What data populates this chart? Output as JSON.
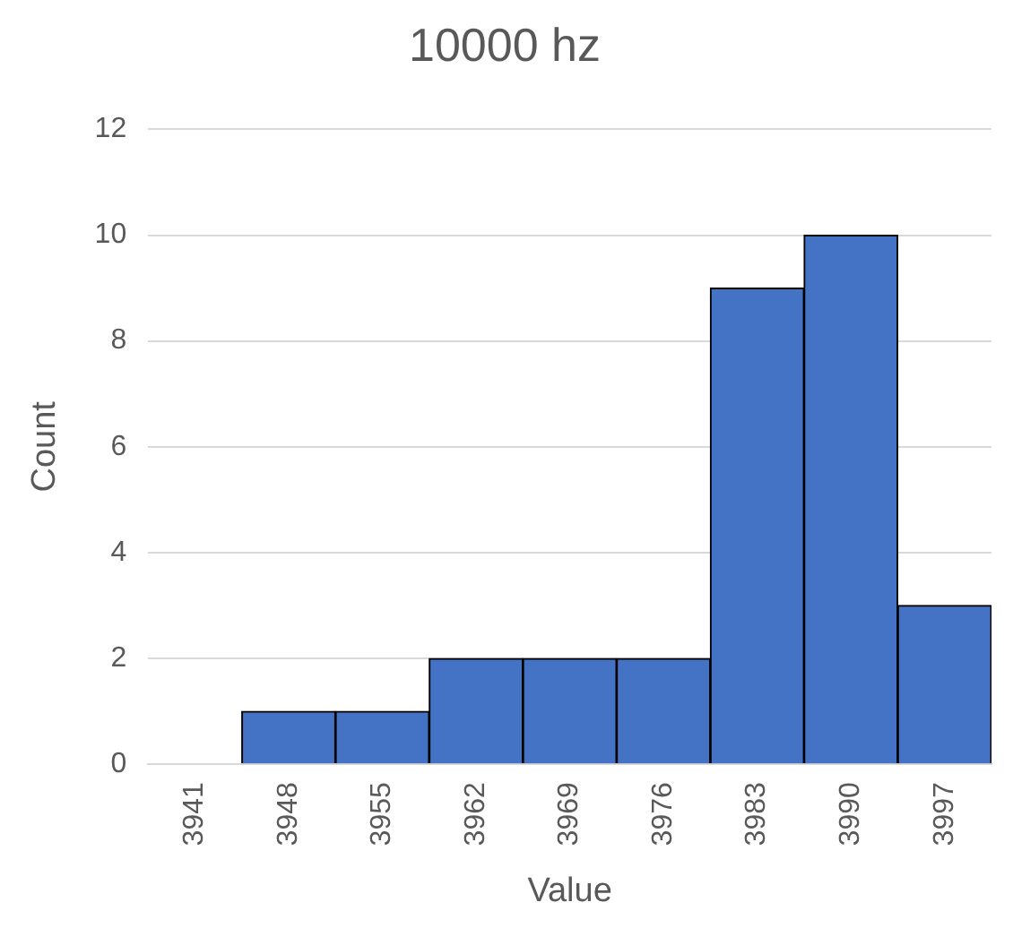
{
  "chart_data": {
    "type": "bar",
    "title": "10000 hz",
    "xlabel": "Value",
    "ylabel": "Count",
    "categories": [
      "3941",
      "3948",
      "3955",
      "3962",
      "3969",
      "3976",
      "3983",
      "3990",
      "3997"
    ],
    "values": [
      0,
      1,
      1,
      2,
      2,
      2,
      9,
      10,
      3
    ],
    "color": "#4472c4",
    "ylim": [
      0,
      12
    ],
    "yticks": [
      0,
      2,
      4,
      6,
      8,
      10,
      12
    ],
    "grid": "y"
  }
}
